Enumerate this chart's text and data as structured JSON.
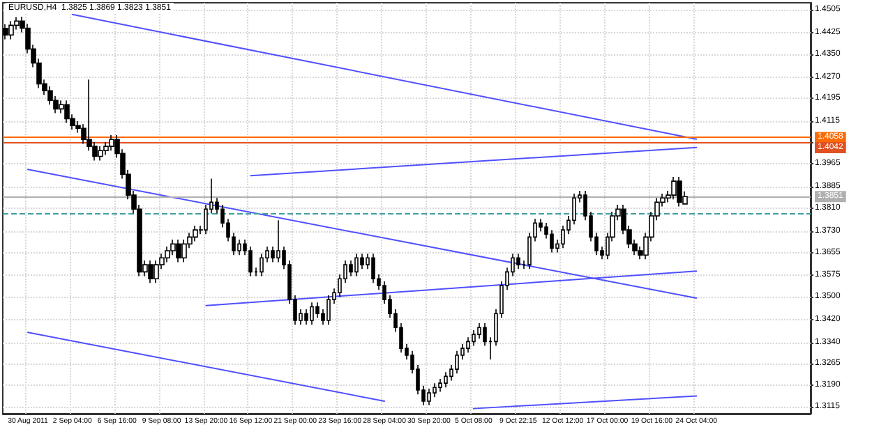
{
  "chart_data": {
    "type": "candlestick",
    "title": "EURUSD,H4  1.3825 1.3869 1.3823 1.3851",
    "categories": [
      null,
      null,
      null,
      null,
      "30 Aug 2011",
      null,
      null,
      null,
      null,
      null,
      null,
      null,
      "2 Sep 04:00",
      null,
      null,
      null,
      null,
      null,
      null,
      null,
      "6 Sep 16:00",
      null,
      null,
      null,
      null,
      null,
      null,
      null,
      "9 Sep 08:00",
      null,
      null,
      null,
      null,
      null,
      null,
      null,
      "13 Sep 20:00",
      null,
      null,
      null,
      null,
      null,
      null,
      null,
      "16 Sep 12:00",
      null,
      null,
      null,
      null,
      null,
      null,
      null,
      "21 Sep 00:00",
      null,
      null,
      null,
      null,
      null,
      null,
      null,
      "23 Sep 16:00",
      null,
      null,
      null,
      null,
      null,
      null,
      null,
      "28 Sep 04:00",
      null,
      null,
      null,
      null,
      null,
      null,
      null,
      "30 Sep 20:00",
      null,
      null,
      null,
      null,
      null,
      null,
      null,
      "5 Oct 08:00",
      null,
      null,
      null,
      null,
      null,
      null,
      null,
      "9 Oct 22:15",
      null,
      null,
      null,
      null,
      null,
      null,
      null,
      "12 Oct 12:00",
      null,
      null,
      null,
      null,
      null,
      null,
      null,
      "17 Oct 00:00",
      null,
      null,
      null,
      null,
      null,
      null,
      null,
      "19 Oct 16:00",
      null,
      null,
      null,
      null,
      null,
      null,
      null,
      "24 Oct 04:00",
      null,
      null,
      null,
      null,
      null,
      null,
      null,
      null,
      null,
      null,
      null,
      null,
      null,
      null,
      null,
      null,
      null,
      null,
      null,
      null
    ],
    "ohlc": [
      [
        1.444,
        1.4455,
        1.4402,
        1.4417
      ],
      [
        1.4417,
        1.4466,
        1.4402,
        1.4451
      ],
      [
        1.4451,
        1.448,
        1.4436,
        1.4466
      ],
      [
        1.4466,
        1.4481,
        1.4426,
        1.4441
      ],
      [
        1.4441,
        1.4456,
        1.4353,
        1.4368
      ],
      [
        1.4368,
        1.4383,
        1.4304,
        1.4319
      ],
      [
        1.4319,
        1.4334,
        1.4231,
        1.4246
      ],
      [
        1.4246,
        1.4261,
        1.4207,
        1.4222
      ],
      [
        1.4222,
        1.4237,
        1.4173,
        1.4188
      ],
      [
        1.4188,
        1.4203,
        1.4143,
        1.4158
      ],
      [
        1.4158,
        1.4188,
        1.4143,
        1.4173
      ],
      [
        1.4173,
        1.4188,
        1.4109,
        1.4124
      ],
      [
        1.4124,
        1.4139,
        1.4085,
        1.41
      ],
      [
        1.41,
        1.4115,
        1.4075,
        1.409
      ],
      [
        1.409,
        1.4105,
        1.4036,
        1.4051
      ],
      [
        1.4051,
        1.4261,
        1.4012,
        1.4027
      ],
      [
        1.4027,
        1.4042,
        1.3977,
        1.3992
      ],
      [
        1.3992,
        1.4027,
        1.3977,
        1.4012
      ],
      [
        1.4012,
        1.4042,
        1.3997,
        1.4027
      ],
      [
        1.4027,
        1.4066,
        1.4012,
        1.4051
      ],
      [
        1.4051,
        1.4066,
        1.3987,
        1.4002
      ],
      [
        1.4002,
        1.4017,
        1.3914,
        1.3929
      ],
      [
        1.3929,
        1.3944,
        1.3841,
        1.3856
      ],
      [
        1.3856,
        1.3871,
        1.3792,
        1.3807
      ],
      [
        1.3807,
        1.3822,
        1.3572,
        1.3587
      ],
      [
        1.3587,
        1.3627,
        1.3572,
        1.3612
      ],
      [
        1.3612,
        1.3627,
        1.3548,
        1.3563
      ],
      [
        1.3563,
        1.3627,
        1.3548,
        1.3612
      ],
      [
        1.3612,
        1.3651,
        1.3597,
        1.3636
      ],
      [
        1.3636,
        1.3676,
        1.3621,
        1.3661
      ],
      [
        1.3661,
        1.37,
        1.3646,
        1.3685
      ],
      [
        1.3685,
        1.37,
        1.3621,
        1.3636
      ],
      [
        1.3636,
        1.37,
        1.3621,
        1.3685
      ],
      [
        1.3685,
        1.3724,
        1.367,
        1.3709
      ],
      [
        1.3709,
        1.3749,
        1.3694,
        1.3734
      ],
      [
        1.3734,
        1.3749,
        1.3719,
        1.3734
      ],
      [
        1.3734,
        1.3822,
        1.3719,
        1.3807
      ],
      [
        1.3807,
        1.3914,
        1.3792,
        1.3831
      ],
      [
        1.3831,
        1.3846,
        1.3792,
        1.3807
      ],
      [
        1.3807,
        1.3822,
        1.3743,
        1.3758
      ],
      [
        1.3758,
        1.3773,
        1.3694,
        1.3709
      ],
      [
        1.3709,
        1.3724,
        1.3646,
        1.3661
      ],
      [
        1.3661,
        1.37,
        1.3646,
        1.3685
      ],
      [
        1.3685,
        1.37,
        1.3646,
        1.3661
      ],
      [
        1.3661,
        1.3676,
        1.3572,
        1.3587
      ],
      [
        1.3587,
        1.3602,
        1.3572,
        1.3587
      ],
      [
        1.3587,
        1.3651,
        1.3572,
        1.3636
      ],
      [
        1.3636,
        1.3676,
        1.3621,
        1.3661
      ],
      [
        1.3661,
        1.3676,
        1.3621,
        1.3636
      ],
      [
        1.3636,
        1.3768,
        1.3621,
        1.3661
      ],
      [
        1.3661,
        1.3676,
        1.3597,
        1.3612
      ],
      [
        1.3612,
        1.3627,
        1.3475,
        1.349
      ],
      [
        1.349,
        1.3505,
        1.3402,
        1.3417
      ],
      [
        1.3417,
        1.3456,
        1.3402,
        1.3441
      ],
      [
        1.3441,
        1.3456,
        1.3402,
        1.3417
      ],
      [
        1.3417,
        1.348,
        1.3402,
        1.3465
      ],
      [
        1.3465,
        1.348,
        1.3426,
        1.3441
      ],
      [
        1.3441,
        1.3456,
        1.3402,
        1.3417
      ],
      [
        1.3417,
        1.3505,
        1.3402,
        1.349
      ],
      [
        1.349,
        1.3529,
        1.3475,
        1.3514
      ],
      [
        1.3514,
        1.3578,
        1.3499,
        1.3563
      ],
      [
        1.3563,
        1.3627,
        1.3548,
        1.3612
      ],
      [
        1.3612,
        1.3627,
        1.3572,
        1.3587
      ],
      [
        1.3587,
        1.3651,
        1.3572,
        1.3636
      ],
      [
        1.3636,
        1.3651,
        1.3597,
        1.3612
      ],
      [
        1.3612,
        1.3651,
        1.3597,
        1.3636
      ],
      [
        1.3636,
        1.3651,
        1.3548,
        1.3563
      ],
      [
        1.3563,
        1.3578,
        1.3524,
        1.3539
      ],
      [
        1.3539,
        1.3554,
        1.3475,
        1.349
      ],
      [
        1.349,
        1.3505,
        1.3426,
        1.3441
      ],
      [
        1.3441,
        1.3456,
        1.3377,
        1.3392
      ],
      [
        1.3392,
        1.3407,
        1.3304,
        1.3319
      ],
      [
        1.3319,
        1.3334,
        1.328,
        1.3295
      ],
      [
        1.3295,
        1.331,
        1.3231,
        1.3246
      ],
      [
        1.3246,
        1.3261,
        1.3158,
        1.3173
      ],
      [
        1.3173,
        1.3188,
        1.312,
        1.3134
      ],
      [
        1.3134,
        1.3178,
        1.312,
        1.3163
      ],
      [
        1.3163,
        1.3197,
        1.3148,
        1.3182
      ],
      [
        1.3182,
        1.3212,
        1.3167,
        1.3197
      ],
      [
        1.3197,
        1.3236,
        1.3182,
        1.3221
      ],
      [
        1.3221,
        1.3261,
        1.3206,
        1.3246
      ],
      [
        1.3246,
        1.331,
        1.3231,
        1.3295
      ],
      [
        1.3295,
        1.3334,
        1.328,
        1.3319
      ],
      [
        1.3319,
        1.3358,
        1.3304,
        1.3343
      ],
      [
        1.3343,
        1.3383,
        1.3328,
        1.3368
      ],
      [
        1.3368,
        1.3407,
        1.3353,
        1.3392
      ],
      [
        1.3392,
        1.3407,
        1.3328,
        1.3343
      ],
      [
        1.3343,
        1.3358,
        1.328,
        1.3343
      ],
      [
        1.3343,
        1.3456,
        1.3328,
        1.3441
      ],
      [
        1.3441,
        1.3554,
        1.3426,
        1.3539
      ],
      [
        1.3539,
        1.3602,
        1.3524,
        1.3587
      ],
      [
        1.3587,
        1.3651,
        1.3572,
        1.3636
      ],
      [
        1.3636,
        1.3651,
        1.3597,
        1.3612
      ],
      [
        1.3612,
        1.3627,
        1.3597,
        1.3612
      ],
      [
        1.3612,
        1.3724,
        1.3597,
        1.3709
      ],
      [
        1.3709,
        1.3773,
        1.3694,
        1.3758
      ],
      [
        1.3758,
        1.3773,
        1.3729,
        1.3744
      ],
      [
        1.3744,
        1.3759,
        1.3704,
        1.3719
      ],
      [
        1.3719,
        1.3734,
        1.3655,
        1.367
      ],
      [
        1.367,
        1.37,
        1.3655,
        1.3685
      ],
      [
        1.3685,
        1.3749,
        1.367,
        1.3734
      ],
      [
        1.3734,
        1.3783,
        1.3719,
        1.3768
      ],
      [
        1.3768,
        1.3861,
        1.3753,
        1.3846
      ],
      [
        1.3846,
        1.3871,
        1.3831,
        1.3856
      ],
      [
        1.3856,
        1.3871,
        1.3768,
        1.3783
      ],
      [
        1.3783,
        1.3798,
        1.3694,
        1.3709
      ],
      [
        1.3709,
        1.3724,
        1.3646,
        1.3661
      ],
      [
        1.3661,
        1.3676,
        1.3631,
        1.3646
      ],
      [
        1.3646,
        1.3724,
        1.3631,
        1.3709
      ],
      [
        1.3709,
        1.3798,
        1.3694,
        1.3783
      ],
      [
        1.3783,
        1.3822,
        1.3768,
        1.3807
      ],
      [
        1.3807,
        1.3822,
        1.3719,
        1.3734
      ],
      [
        1.3734,
        1.3749,
        1.367,
        1.3685
      ],
      [
        1.3685,
        1.37,
        1.3646,
        1.3661
      ],
      [
        1.3661,
        1.3676,
        1.3631,
        1.3646
      ],
      [
        1.3646,
        1.3724,
        1.3631,
        1.3709
      ],
      [
        1.3709,
        1.3798,
        1.3694,
        1.3783
      ],
      [
        1.3783,
        1.3846,
        1.3768,
        1.3831
      ],
      [
        1.3831,
        1.3861,
        1.3816,
        1.3846
      ],
      [
        1.3846,
        1.3871,
        1.3831,
        1.3856
      ],
      [
        1.3856,
        1.392,
        1.3841,
        1.3905
      ],
      [
        1.3905,
        1.392,
        1.3816,
        1.3831
      ],
      [
        1.3825,
        1.3869,
        1.3823,
        1.3851
      ],
      null,
      null,
      null,
      null,
      null,
      null,
      null,
      null,
      null,
      null,
      null,
      null,
      null,
      null,
      null,
      null,
      null,
      null,
      null,
      null,
      null,
      null
    ],
    "color": "#000000",
    "series": [
      {
        "type": "line",
        "color": "#5050ff",
        "x": [
          "2 Sep 04:00",
          "24 Oct 04:00"
        ],
        "values": [
          1.4489,
          1.4052
        ]
      },
      {
        "type": "line",
        "color": "#5050ff",
        "x": [
          "30 Aug 2011",
          "24 Oct 04:00"
        ],
        "values": [
          1.3946,
          1.3495
        ]
      },
      {
        "type": "line",
        "color": "#5050ff",
        "x": [
          "30 Aug 2011",
          "28 Sep 04:00"
        ],
        "values": [
          1.3375,
          1.3134
        ]
      },
      {
        "type": "line",
        "color": "#5050ff",
        "x": [
          "13 Sep 20:00",
          "24 Oct 04:00"
        ],
        "values": [
          1.3469,
          1.359
        ]
      },
      {
        "type": "line",
        "color": "#5050ff",
        "x": [
          "5 Oct 08:00",
          "24 Oct 04:00"
        ],
        "values": [
          1.3108,
          1.3152
        ]
      },
      {
        "type": "line",
        "color": "#5050ff",
        "x": [
          "16 Sep 12:00",
          "24 Oct 04:00"
        ],
        "values": [
          1.3924,
          1.4023
        ]
      }
    ],
    "marker": "none",
    "line_style": "solid",
    "ylim": [
      1.309,
      1.453
    ],
    "yticks": [
      {
        "value": 1.4505,
        "label": "1.4505"
      },
      {
        "value": 1.4425,
        "label": "1.4425"
      },
      {
        "value": 1.435,
        "label": "1.4350"
      },
      {
        "value": 1.427,
        "label": "1.4270"
      },
      {
        "value": 1.4195,
        "label": "1.4195"
      },
      {
        "value": 1.4115,
        "label": "1.4115"
      },
      {
        "value": 1.404,
        "label": null
      },
      {
        "value": 1.3965,
        "label": "1.3965"
      },
      {
        "value": 1.3885,
        "label": "1.3885"
      },
      {
        "value": 1.381,
        "label": "1.3810"
      },
      {
        "value": 1.373,
        "label": "1.3730"
      },
      {
        "value": 1.3655,
        "label": "1.3655"
      },
      {
        "value": 1.3575,
        "label": "1.3575"
      },
      {
        "value": 1.35,
        "label": "1.3500"
      },
      {
        "value": 1.342,
        "label": "1.3420"
      },
      {
        "value": 1.334,
        "label": "1.3340"
      },
      {
        "value": 1.3265,
        "label": "1.3265"
      },
      {
        "value": 1.319,
        "label": "1.3190"
      },
      {
        "value": 1.3115,
        "label": "1.3115"
      }
    ],
    "ref_lines": [
      {
        "axis": "y",
        "value": 1.4058,
        "label": "1.4058",
        "color": "#ff6a00"
      },
      {
        "axis": "y",
        "value": 1.4042,
        "label": "1.4042",
        "color": "#e05020"
      },
      {
        "axis": "y",
        "value": 1.3851,
        "label": "1.3851",
        "color": "#b0b0b0"
      },
      {
        "axis": "y",
        "value": 1.3792,
        "label": null,
        "color": "#40a0a0",
        "line_style": "dashed"
      }
    ],
    "grid": true
  }
}
